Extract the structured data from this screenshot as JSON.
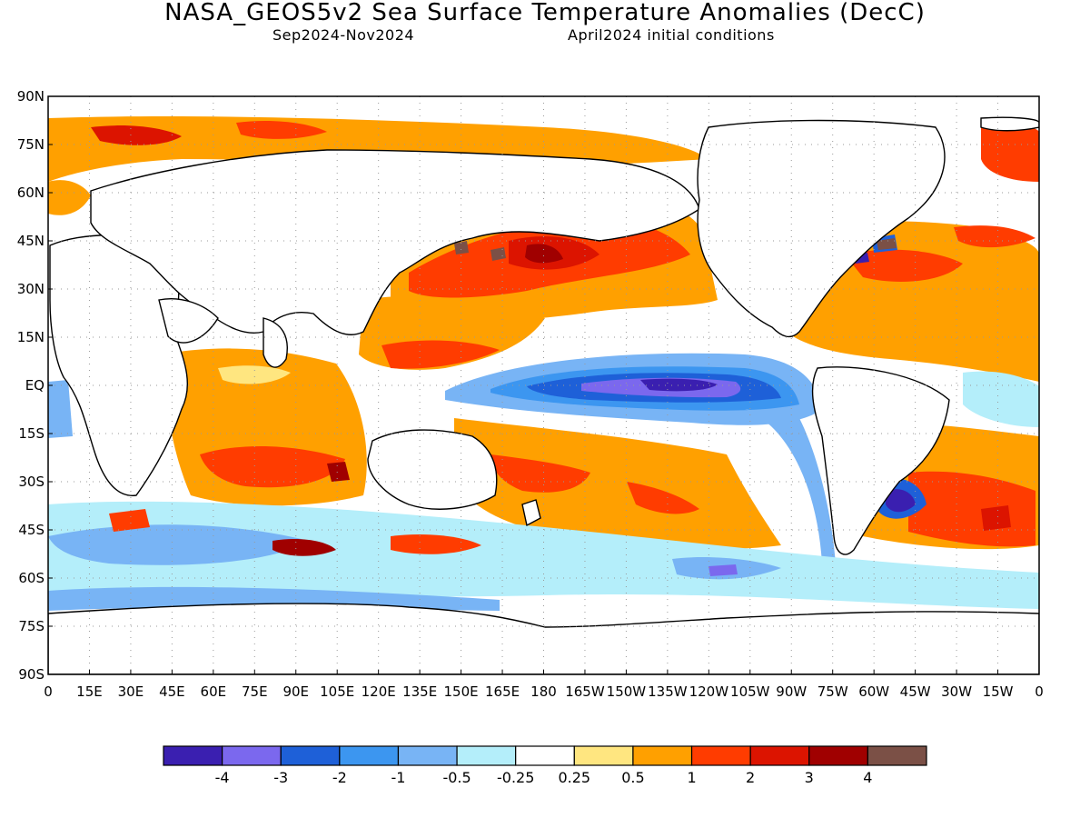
{
  "title": "NASA_GEOS5v2 Sea Surface Temperature Anomalies (DecC)",
  "subtitle_period": "Sep2024-Nov2024",
  "subtitle_init": "April2024 initial conditions",
  "lat_labels": [
    "90N",
    "75N",
    "60N",
    "45N",
    "30N",
    "15N",
    "EQ",
    "15S",
    "30S",
    "45S",
    "60S",
    "75S",
    "90S"
  ],
  "lon_labels": [
    "0",
    "15E",
    "30E",
    "45E",
    "60E",
    "75E",
    "90E",
    "105E",
    "120E",
    "135E",
    "150E",
    "165E",
    "180",
    "165W",
    "150W",
    "135W",
    "120W",
    "105W",
    "90W",
    "75W",
    "60W",
    "45W",
    "30W",
    "15W",
    "0"
  ],
  "colorbar": {
    "colors": [
      "#3a1fb0",
      "#7b68ee",
      "#1e60d8",
      "#3c96f0",
      "#78b4f5",
      "#b4eefa",
      "#ffffff",
      "#ffe680",
      "#ffa000",
      "#ff3c00",
      "#dc1400",
      "#a00000",
      "#7b5046"
    ],
    "labels": [
      "-4",
      "-3",
      "-2",
      "-1",
      "-0.5",
      "-0.25",
      "0.25",
      "0.5",
      "1",
      "2",
      "3",
      "4"
    ]
  },
  "colors": {
    "land": "#ffffff",
    "coast": "#000000",
    "grid": "#9a9a9a"
  }
}
